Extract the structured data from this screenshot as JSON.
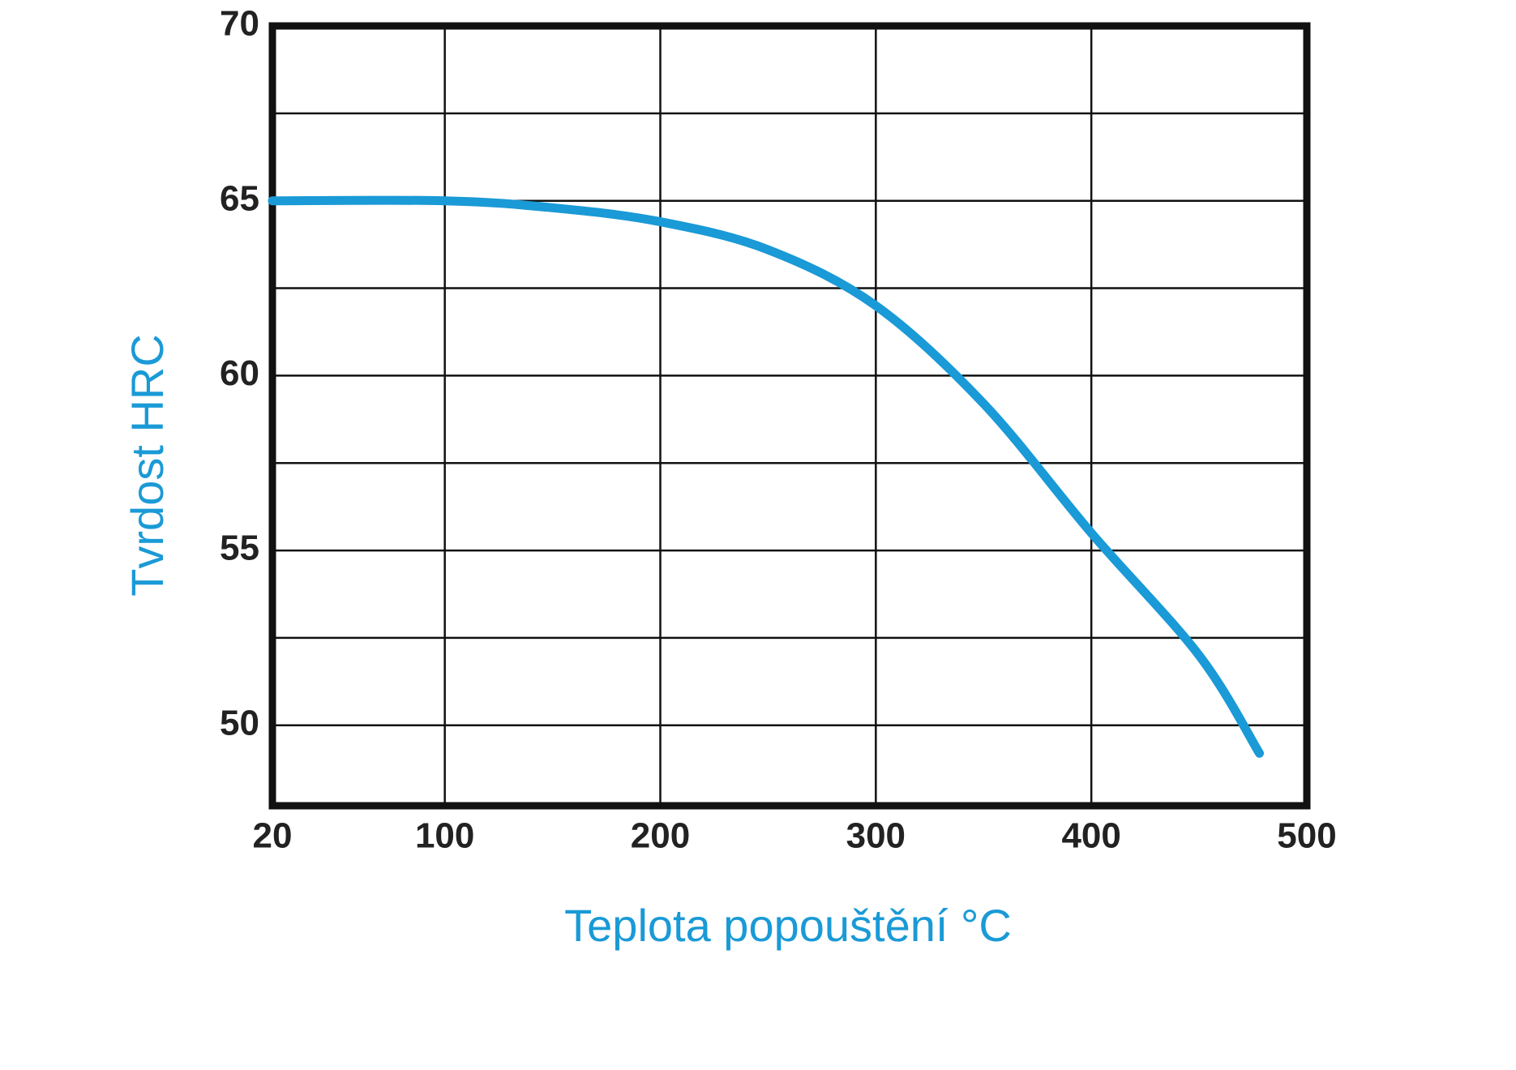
{
  "chart_data": {
    "type": "line",
    "x_label": "Teplota popouštění °C",
    "y_label": "Tvrdost HRC",
    "x": [
      20,
      100,
      150,
      200,
      250,
      300,
      350,
      400,
      450,
      478
    ],
    "series": [
      {
        "name": "Tvrdost",
        "color": "#1a9ad6",
        "values": [
          65,
          65,
          64.8,
          64.4,
          63.6,
          62,
          59.2,
          55.5,
          52,
          49.2
        ]
      }
    ],
    "xlim": [
      20,
      500
    ],
    "xticks": [
      20,
      100,
      200,
      300,
      400,
      500
    ],
    "ylim": [
      47.7,
      70
    ],
    "yticks": [
      50,
      55,
      60,
      65,
      70
    ],
    "minor_yticks": [
      52.5,
      57.5,
      62.5,
      67.5
    ],
    "grid": true
  }
}
